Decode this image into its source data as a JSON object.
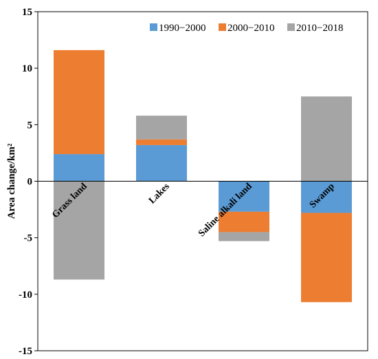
{
  "chart_data": {
    "type": "bar",
    "stacked": true,
    "title": "",
    "xlabel": "",
    "ylabel": "Area change/km²",
    "ylim": [
      -15,
      15
    ],
    "yticks": [
      -15,
      -10,
      -5,
      0,
      5,
      10,
      15
    ],
    "ytick_labels": [
      "-15",
      "-10",
      "-5",
      "0",
      "5",
      "10",
      "15"
    ],
    "grid": false,
    "legend_position": "top-right",
    "categories": [
      "Grass land",
      "Lakes",
      "Saline alkali land",
      "Swamp"
    ],
    "series": [
      {
        "name": "1990−2000",
        "color": "#5b9bd5",
        "values": [
          2.4,
          3.2,
          -2.7,
          -2.8
        ]
      },
      {
        "name": "2000−2010",
        "color": "#ed7d31",
        "values": [
          9.2,
          0.5,
          -1.8,
          -7.9
        ]
      },
      {
        "name": "2010−2018",
        "color": "#a5a5a5",
        "values": [
          -8.7,
          2.1,
          -0.8,
          7.5
        ]
      }
    ]
  }
}
